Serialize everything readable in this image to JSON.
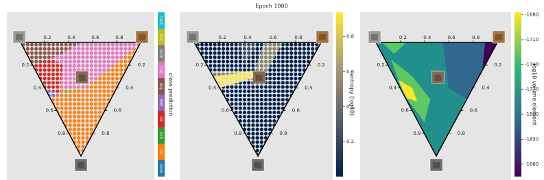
{
  "title": "Epoch 1000",
  "chart_data": [
    {
      "type": "ternary",
      "aticks": [
        0.2,
        0.4,
        0.6,
        0.8
      ],
      "bticks": [
        0.2,
        0.4,
        0.6,
        0.8
      ],
      "cticks": [
        0.2,
        0.4,
        0.6,
        0.8
      ],
      "colorbar": {
        "kind": "categorical",
        "label": "class prediction",
        "categories": [
          "truck",
          "ship",
          "horse",
          "frog",
          "dog",
          "deer",
          "cat",
          "bird",
          "car",
          "plane"
        ],
        "colors": [
          "#17becf",
          "#bcbd22",
          "#7f7f7f",
          "#e377c2",
          "#8c564b",
          "#9467bd",
          "#d62728",
          "#2ca02c",
          "#ff7f0e",
          "#1f77b4"
        ]
      }
    },
    {
      "type": "ternary",
      "aticks": [
        0.2,
        0.4,
        0.6,
        0.8
      ],
      "bticks": [
        0.2,
        0.4,
        0.6,
        0.8
      ],
      "cticks": [
        0.2,
        0.4,
        0.6,
        0.8
      ],
      "colorbar": {
        "kind": "continuous",
        "label": "entropy (log10)",
        "lim": [
          0,
          0.94
        ],
        "ticks": [
          0.2,
          0.4,
          0.6,
          0.8
        ],
        "colors": [
          "#00204c",
          "#575c6d",
          "#a59c74",
          "#fee838"
        ]
      }
    },
    {
      "type": "ternary",
      "aticks": [
        0.2,
        0.4,
        0.6,
        0.8
      ],
      "bticks": [
        0.2,
        0.4,
        0.6,
        0.8
      ],
      "cticks": [
        0.2,
        0.4,
        0.6,
        0.8
      ],
      "colorbar": {
        "kind": "continuous",
        "label": "log10 volume element",
        "lim": [
          -1875,
          -1677
        ],
        "ticks": [
          -1680,
          -1710,
          -1740,
          -1770,
          -1800,
          -1830,
          -1860
        ],
        "colors": [
          "#440154",
          "#31688e",
          "#35b779",
          "#fde725"
        ]
      }
    }
  ]
}
